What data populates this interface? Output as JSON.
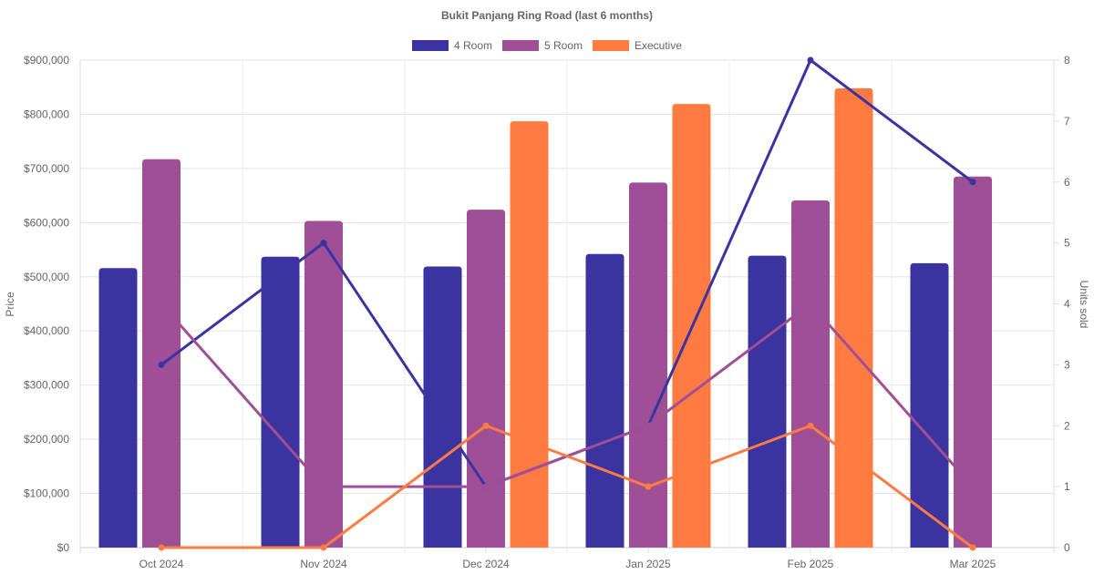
{
  "chart_data": {
    "type": "bar+line",
    "title": "Bukit Panjang Ring Road (last 6 months)",
    "categories": [
      "Oct 2024",
      "Nov 2024",
      "Dec 2024",
      "Jan 2025",
      "Feb 2025",
      "Mar 2025"
    ],
    "ylabel": "Price",
    "y2label": "Units sold",
    "ylim": [
      0,
      900000
    ],
    "y2lim": [
      0,
      8
    ],
    "yticks": [
      "$0",
      "$100,000",
      "$200,000",
      "$300,000",
      "$400,000",
      "$500,000",
      "$600,000",
      "$700,000",
      "$800,000",
      "$900,000"
    ],
    "y2ticks": [
      "0",
      "1",
      "2",
      "3",
      "4",
      "5",
      "6",
      "7",
      "8"
    ],
    "legend_position": "top",
    "grid": true,
    "series": [
      {
        "name": "4 Room",
        "color": "#3a33a0",
        "price": [
          516000,
          537000,
          519000,
          542000,
          539000,
          525000
        ],
        "units": [
          3,
          5,
          1,
          2,
          8,
          6
        ]
      },
      {
        "name": "5 Room",
        "color": "#9e4f96",
        "price": [
          717000,
          603000,
          624000,
          674000,
          641000,
          685000
        ],
        "units": [
          4,
          1,
          1,
          2,
          4,
          1
        ]
      },
      {
        "name": "Executive",
        "color": "#ff7b42",
        "price": [
          null,
          null,
          787000,
          819000,
          848000,
          null
        ],
        "units": [
          0,
          0,
          2,
          1,
          2,
          0
        ]
      }
    ]
  }
}
